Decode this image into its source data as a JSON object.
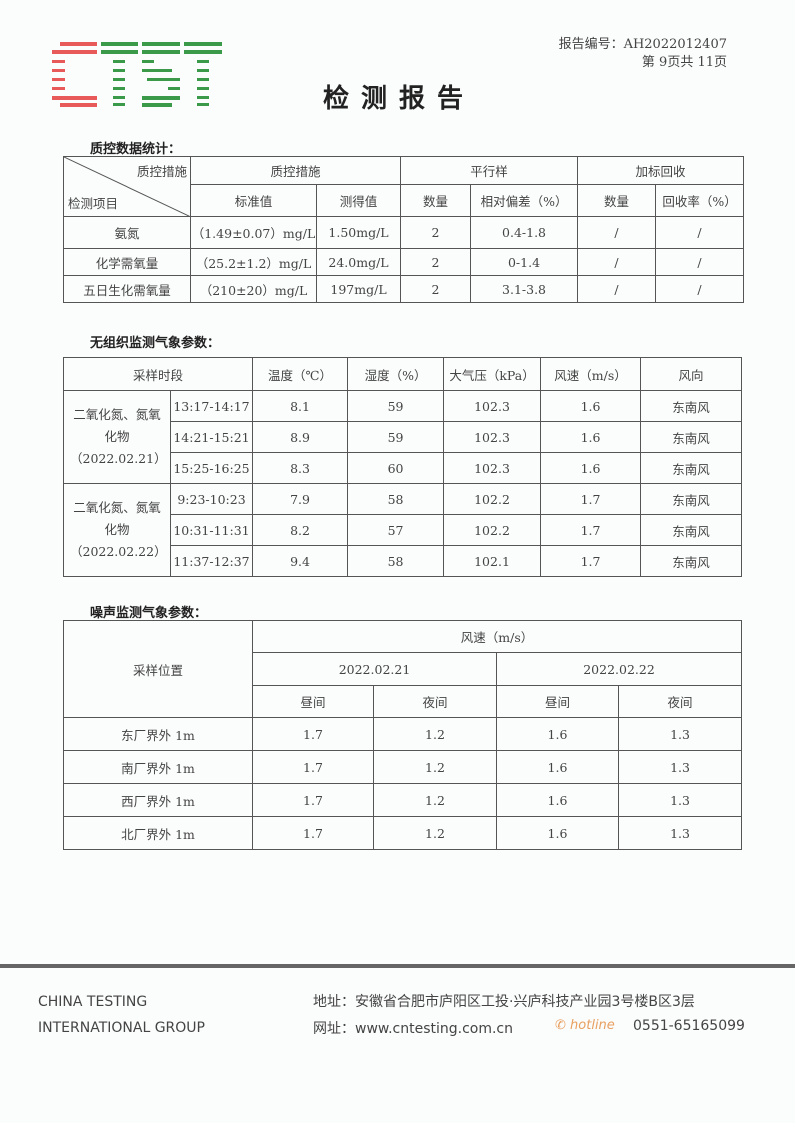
{
  "header": {
    "logo_text": "CTST",
    "report_no": "报告编号：AH2022012407",
    "page_info": "第 9页共 11页",
    "title": "检测报告"
  },
  "qc": {
    "section_title": "质控数据统计：",
    "diag_top": "质控措施",
    "diag_bottom": "检测项目",
    "groups": [
      "质控措施",
      "平行样",
      "加标回收"
    ],
    "subheaders": [
      "标准值",
      "测得值",
      "数量",
      "相对偏差（%）",
      "数量",
      "回收率（%）"
    ],
    "rows": [
      [
        "氨氮",
        "（1.49±0.07）mg/L",
        "1.50mg/L",
        "2",
        "0.4-1.8",
        "/",
        "/"
      ],
      [
        "化学需氧量",
        "（25.2±1.2）mg/L",
        "24.0mg/L",
        "2",
        "0-1.4",
        "/",
        "/"
      ],
      [
        "五日生化需氧量",
        "（210±20）mg/L",
        "197mg/L",
        "2",
        "3.1-3.8",
        "/",
        "/"
      ]
    ]
  },
  "weather": {
    "section_title": "无组织监测气象参数：",
    "headers": [
      "采样时段",
      "温度（℃）",
      "湿度（%）",
      "大气压（kPa）",
      "风速（m/s）",
      "风向"
    ],
    "groups": [
      {
        "label": "二氧化氮、氮氧化物（2022.02.21）",
        "rows": [
          [
            "13:17-14:17",
            "8.1",
            "59",
            "102.3",
            "1.6",
            "东南风"
          ],
          [
            "14:21-15:21",
            "8.9",
            "59",
            "102.3",
            "1.6",
            "东南风"
          ],
          [
            "15:25-16:25",
            "8.3",
            "60",
            "102.3",
            "1.6",
            "东南风"
          ]
        ]
      },
      {
        "label": "二氧化氮、氮氧化物（2022.02.22）",
        "rows": [
          [
            "9:23-10:23",
            "7.9",
            "58",
            "102.2",
            "1.7",
            "东南风"
          ],
          [
            "10:31-11:31",
            "8.2",
            "57",
            "102.2",
            "1.7",
            "东南风"
          ],
          [
            "11:37-12:37",
            "9.4",
            "58",
            "102.1",
            "1.7",
            "东南风"
          ]
        ]
      }
    ]
  },
  "noise": {
    "section_title": "噪声监测气象参数：",
    "location_header": "采样位置",
    "wind_header": "风速（m/s）",
    "dates": [
      "2022.02.21",
      "2022.02.22"
    ],
    "periods": [
      "昼间",
      "夜间",
      "昼间",
      "夜间"
    ],
    "rows": [
      [
        "东厂界外 1m",
        "1.7",
        "1.2",
        "1.6",
        "1.3"
      ],
      [
        "南厂界外 1m",
        "1.7",
        "1.2",
        "1.6",
        "1.3"
      ],
      [
        "西厂界外 1m",
        "1.7",
        "1.2",
        "1.6",
        "1.3"
      ],
      [
        "北厂界外 1m",
        "1.7",
        "1.2",
        "1.6",
        "1.3"
      ]
    ]
  },
  "footer": {
    "company_line1": "CHINA TESTING",
    "company_line2": "INTERNATIONAL GROUP",
    "address": "地址：安徽省合肥市庐阳区工投·兴庐科技产业园3号楼B区3层",
    "website": "网址：www.cntesting.com.cn",
    "hotline_label": "hotline",
    "phone": "0551-65165099"
  },
  "colors": {
    "logo_red": "#e85a5a",
    "logo_green": "#3a9a4a",
    "hotline": "#e8a060"
  }
}
